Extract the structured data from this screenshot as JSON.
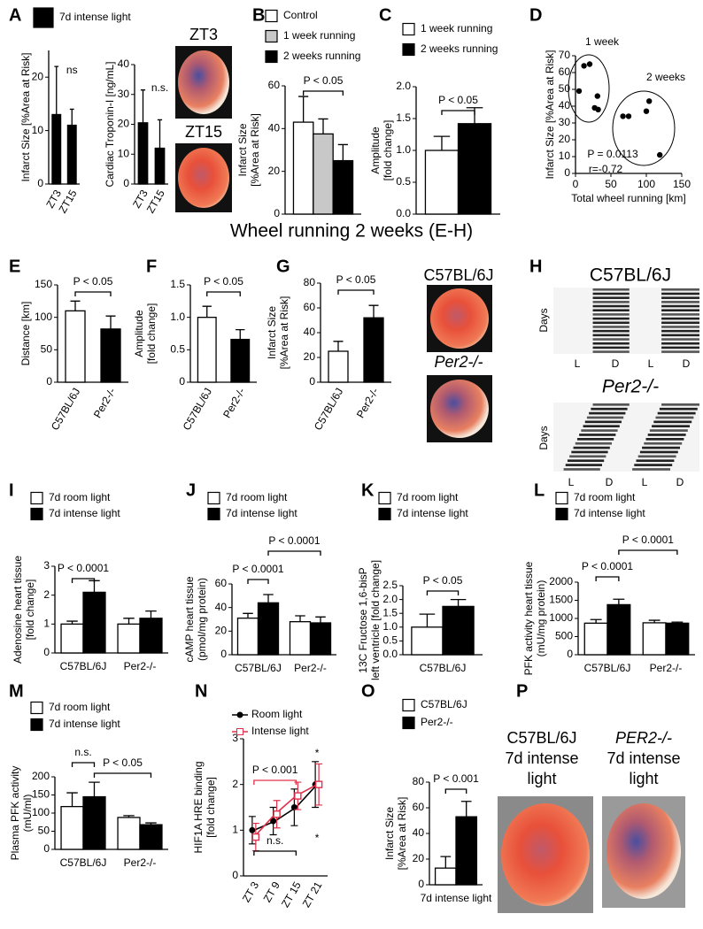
{
  "panels": [
    "A",
    "B",
    "C",
    "D",
    "E",
    "F",
    "G",
    "H",
    "I",
    "J",
    "K",
    "L",
    "M",
    "N",
    "O",
    "P"
  ],
  "heading": "Wheel running 2 weeks (E-H)",
  "photos": {
    "a": [
      "ZT3",
      "ZT15"
    ],
    "g": [
      "C57BL/6J",
      "Per2-/-"
    ],
    "p": [
      "C57BL/6J",
      "7d intense",
      "light",
      "PER2-/-",
      "7d intense",
      "light"
    ]
  },
  "actogram": {
    "titles": [
      "C57BL/6J",
      "Per2-/-"
    ],
    "ylabel": "Days",
    "phases": [
      "L",
      "D",
      "L",
      "D"
    ]
  },
  "chart_data": [
    {
      "type": "bar",
      "ylabel": [
        "Infarct Size [%Area at Risk]"
      ],
      "categories": [
        "ZT3",
        "ZT15"
      ],
      "series": [
        {
          "name": "7d intense light",
          "color": "#000000",
          "values": [
            13,
            11
          ],
          "errors": [
            9,
            3
          ]
        }
      ],
      "ylim": [
        0,
        25
      ],
      "yticks": [
        0,
        10,
        20
      ],
      "annotations": [
        "ns"
      ]
    },
    {
      "type": "bar",
      "ylabel": [
        "Cardiac Troponin-I [ng/mL]"
      ],
      "categories": [
        "ZT3",
        "ZT15"
      ],
      "series": [
        {
          "color": "#000000",
          "values": [
            20.5,
            12
          ],
          "errors": [
            11,
            9.5
          ]
        }
      ],
      "ylim": [
        0,
        40
      ],
      "yticks": [
        0,
        10,
        20,
        30,
        40
      ],
      "annotations": [
        "n.s."
      ]
    },
    {
      "type": "bar",
      "ylabel": [
        "Infarct Size",
        "[%Area at Risk]"
      ],
      "categories": [
        null
      ],
      "series": [
        {
          "name": "Control",
          "color": "#ffffff",
          "values": [
            43
          ],
          "errors": [
            12
          ]
        },
        {
          "name": "1 week running",
          "color": "#c8c8c8",
          "values": [
            37.5
          ],
          "errors": [
            7
          ]
        },
        {
          "name": "2 weeks running",
          "color": "#000000",
          "values": [
            25
          ],
          "errors": [
            7.5
          ]
        }
      ],
      "ylim": [
        0,
        60
      ],
      "yticks": [
        0,
        20,
        40,
        60
      ],
      "annotations": [
        "P < 0.05"
      ]
    },
    {
      "type": "bar",
      "ylabel": [
        "Amplitude",
        "[fold change]"
      ],
      "categories": [
        null
      ],
      "series": [
        {
          "name": "1 week running",
          "color": "#ffffff",
          "values": [
            1.0
          ],
          "errors": [
            0.22
          ]
        },
        {
          "name": "2 weeks running",
          "color": "#000000",
          "values": [
            1.42
          ],
          "errors": [
            0.25
          ]
        }
      ],
      "ylim": [
        0,
        2
      ],
      "yticks": [
        {
          "value": 0,
          "label": "0.0"
        },
        0.5,
        {
          "value": 1,
          "label": "1.0"
        },
        1.5,
        {
          "value": 2,
          "label": "2.0"
        }
      ],
      "annotations": [
        "P < 0.05"
      ]
    },
    {
      "type": "scatter",
      "xlabel": "Total wheel running [km]",
      "ylabel": [
        "Infarct Size [%Area at Risk]"
      ],
      "x": [
        12,
        20,
        5,
        31,
        27,
        32,
        67,
        75,
        100,
        104,
        119
      ],
      "values": [
        64,
        65,
        49,
        46,
        39,
        38,
        34,
        34,
        37,
        43,
        11
      ],
      "color": "#000000",
      "xlim": [
        0,
        150
      ],
      "xticks": [
        0,
        50,
        100,
        150
      ],
      "ylim": [
        0,
        70
      ],
      "yticks": [
        0,
        10,
        20,
        30,
        40,
        50,
        60,
        70
      ],
      "annotations": [
        "1 week",
        "2 weeks",
        "P = 0.0113",
        "r=-0.72"
      ]
    },
    {
      "type": "bar",
      "ylabel": [
        "Distance [km]"
      ],
      "categories": [
        "C57BL/6J",
        "Per2-/-"
      ],
      "series": [
        {
          "colors": [
            "#ffffff",
            "#000000"
          ],
          "values": [
            110,
            82
          ],
          "errors": [
            15,
            20
          ]
        }
      ],
      "ylim": [
        0,
        150
      ],
      "yticks": [
        0,
        50,
        100,
        150
      ],
      "annotations": [
        "P < 0.05"
      ]
    },
    {
      "type": "bar",
      "ylabel": [
        "Amplitude",
        "[fold change]"
      ],
      "categories": [
        "C57BL/6J",
        "Per2-/-"
      ],
      "series": [
        {
          "colors": [
            "#ffffff",
            "#000000"
          ],
          "values": [
            1.0,
            0.66
          ],
          "errors": [
            0.17,
            0.15
          ]
        }
      ],
      "ylim": [
        0,
        1.5
      ],
      "yticks": [
        0,
        0.5,
        {
          "value": 1,
          "label": "1.0"
        },
        1.5
      ],
      "annotations": [
        "P < 0.05"
      ]
    },
    {
      "type": "bar",
      "ylabel": [
        "Infarct Size",
        "[%Area at Risk]"
      ],
      "categories": [
        "C57BL/6J",
        "Per2-/-"
      ],
      "series": [
        {
          "colors": [
            "#ffffff",
            "#000000"
          ],
          "values": [
            25,
            52
          ],
          "errors": [
            8,
            10
          ]
        }
      ],
      "ylim": [
        0,
        80
      ],
      "yticks": [
        0,
        20,
        40,
        60,
        80
      ],
      "annotations": [
        "P < 0.05"
      ]
    },
    {
      "type": "bar",
      "ylabel": [
        "Adenosine heart tissue",
        "[fold change]"
      ],
      "categories": [
        "C57BL/6J",
        "Per2-/-"
      ],
      "series": [
        {
          "name": "7d room light",
          "color": "#ffffff",
          "values": [
            1.0,
            1.0
          ],
          "errors": [
            0.1,
            0.2
          ]
        },
        {
          "name": "7d intense light",
          "color": "#000000",
          "values": [
            2.1,
            1.2
          ],
          "errors": [
            0.4,
            0.25
          ]
        }
      ],
      "ylim": [
        0,
        3
      ],
      "yticks": [
        0,
        1,
        2,
        3
      ],
      "annotations": [
        "P < 0.0001"
      ]
    },
    {
      "type": "bar",
      "ylabel": [
        "cAMP heart tissue",
        "(pmol/mg protein)"
      ],
      "categories": [
        "C57BL/6J",
        "Per2-/-"
      ],
      "series": [
        {
          "name": "7d room light",
          "color": "#ffffff",
          "values": [
            31,
            28
          ],
          "errors": [
            4,
            5
          ]
        },
        {
          "name": "7d intense light",
          "color": "#000000",
          "values": [
            44,
            27
          ],
          "errors": [
            7,
            5
          ]
        }
      ],
      "ylim": [
        0,
        60
      ],
      "yticks": [
        0,
        20,
        40,
        60
      ],
      "annotations": [
        "P < 0.0001",
        "P < 0.0001"
      ]
    },
    {
      "type": "bar",
      "ylabel": [
        "13C Fructose 1,6-bisP",
        "left ventricle [fold change]"
      ],
      "categories": [
        "C57BL/6J"
      ],
      "series": [
        {
          "name": "7d room light",
          "color": "#ffffff",
          "values": [
            1.0
          ],
          "errors": [
            0.47
          ]
        },
        {
          "name": "7d intense light",
          "color": "#000000",
          "values": [
            1.75
          ],
          "errors": [
            0.25
          ]
        }
      ],
      "ylim": [
        0,
        2.5
      ],
      "yticks": [
        {
          "value": 0,
          "label": "0.0"
        },
        0.5,
        {
          "value": 1,
          "label": "1.0"
        },
        1.5,
        {
          "value": 2,
          "label": "2.0"
        },
        2.5
      ],
      "annotations": [
        "P < 0.05"
      ]
    },
    {
      "type": "bar",
      "ylabel": [
        "PFK activity heart tissue",
        "(mU/mg protein)"
      ],
      "categories": [
        "C57BL/6J",
        "Per2-/-"
      ],
      "series": [
        {
          "name": "7d room light",
          "color": "#ffffff",
          "values": [
            870,
            880
          ],
          "errors": [
            100,
            70
          ]
        },
        {
          "name": "7d intense light",
          "color": "#000000",
          "values": [
            1380,
            870
          ],
          "errors": [
            150,
            30
          ]
        }
      ],
      "ylim": [
        0,
        2000
      ],
      "yticks": [
        0,
        500,
        1000,
        1500,
        2000
      ],
      "annotations": [
        "P < 0.0001",
        "P < 0.0001"
      ]
    },
    {
      "type": "bar",
      "ylabel": [
        "Plasma PFK activity",
        "(mU/ml)"
      ],
      "categories": [
        "C57BL/6J",
        "Per2-/-"
      ],
      "series": [
        {
          "name": "7d room light",
          "color": "#ffffff",
          "values": [
            118,
            88
          ],
          "errors": [
            38,
            5
          ]
        },
        {
          "name": "7d intense light",
          "color": "#000000",
          "values": [
            145,
            68
          ],
          "errors": [
            40,
            5
          ]
        }
      ],
      "ylim": [
        0,
        200
      ],
      "yticks": [
        0,
        50,
        100,
        150,
        200
      ],
      "annotations": [
        "n.s.",
        "P < 0.05"
      ]
    },
    {
      "type": "line",
      "ylabel": [
        "HIF1A HRE binding",
        "[fold change]"
      ],
      "categories": [
        "ZT 3",
        "ZT 9",
        "ZT 15",
        "ZT 21"
      ],
      "series": [
        {
          "name": "Room light",
          "color": "#000000",
          "marker": "circle",
          "values": [
            1.0,
            1.2,
            1.5,
            2.0
          ],
          "errors": [
            0.3,
            0.3,
            0.4,
            0.5
          ]
        },
        {
          "name": "Intense light",
          "color": "#e0304a",
          "marker": "square",
          "values": [
            0.85,
            1.35,
            1.75,
            2.0
          ],
          "errors": [
            0.3,
            0.3,
            0.3,
            0.45
          ]
        }
      ],
      "ylim": [
        0,
        3
      ],
      "yticks": [
        0,
        1,
        2,
        3
      ],
      "annotations": [
        "P < 0.001",
        "n.s.",
        "*",
        "*"
      ],
      "annotation_colors": [
        "#e0304a",
        "#000000",
        "#e0304a",
        "#000000"
      ]
    },
    {
      "type": "bar",
      "ylabel": [
        "Infarct Size",
        "[%Area at Risk]"
      ],
      "categories": [
        "7d intense light"
      ],
      "series": [
        {
          "name": "C57BL/6J",
          "color": "#ffffff",
          "values": [
            13
          ],
          "errors": [
            9
          ]
        },
        {
          "name": "Per2-/-",
          "color": "#000000",
          "values": [
            53
          ],
          "errors": [
            12
          ]
        }
      ],
      "ylim": [
        0,
        80
      ],
      "yticks": [
        0,
        20,
        40,
        60,
        80
      ],
      "annotations": [
        "P < 0.001"
      ]
    }
  ]
}
